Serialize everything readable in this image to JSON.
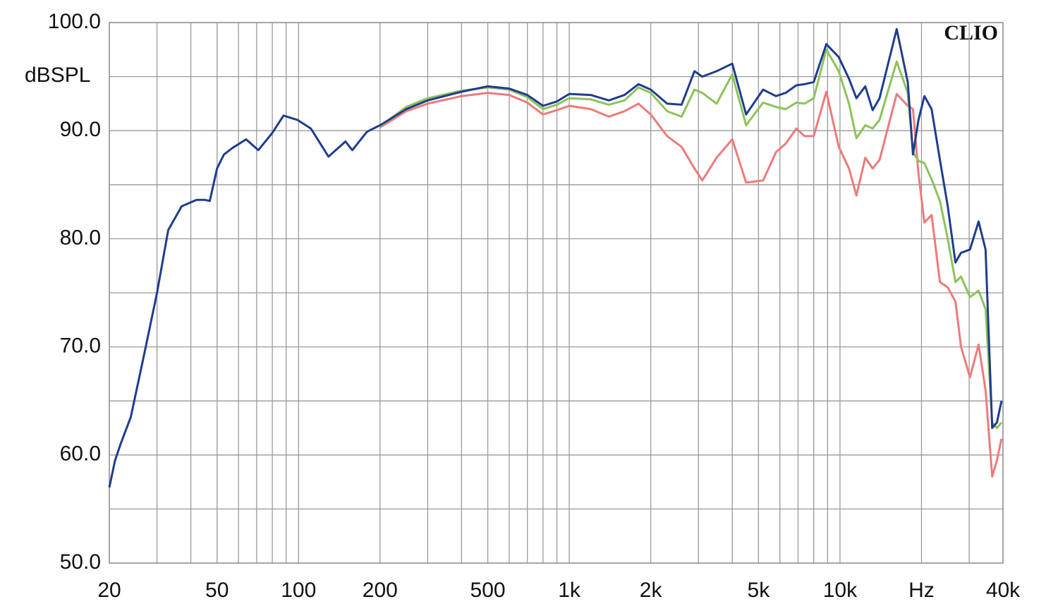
{
  "chart_data": {
    "type": "line",
    "y_label": "dBSPL",
    "annotation": "CLIO",
    "log_x": true,
    "grid": true,
    "xlim": [
      20,
      40000
    ],
    "ylim": [
      50,
      100
    ],
    "xticks": [
      20,
      50,
      100,
      200,
      500,
      {
        "value": 1000,
        "label": "1k"
      },
      {
        "value": 2000,
        "label": "2k"
      },
      {
        "value": 5000,
        "label": "5k"
      },
      {
        "value": 10000,
        "label": "10k"
      },
      {
        "value": 20000,
        "label": "Hz"
      },
      {
        "value": 40000,
        "label": "40k"
      }
    ],
    "yticks": [
      {
        "value": 50,
        "label": "50.0"
      },
      {
        "value": 60,
        "label": "60.0"
      },
      {
        "value": 70,
        "label": "70.0"
      },
      {
        "value": 80,
        "label": "80.0"
      },
      {
        "value": 90,
        "label": "90.0"
      },
      {
        "value": 100,
        "label": "100.0"
      }
    ],
    "xminor": [
      30,
      40,
      60,
      70,
      80,
      90,
      300,
      400,
      600,
      700,
      800,
      900,
      3000,
      4000,
      6000,
      7000,
      8000,
      9000,
      30000
    ],
    "yminor": [
      55,
      65,
      75,
      85,
      95
    ],
    "x": [
      20,
      21,
      22,
      24,
      27,
      30,
      33,
      37,
      42,
      45,
      47,
      50,
      53,
      57,
      64,
      71,
      80,
      88,
      99,
      111,
      129,
      149,
      158,
      179,
      200,
      250,
      300,
      400,
      500,
      600,
      700,
      800,
      900,
      1000,
      1200,
      1400,
      1600,
      1800,
      2000,
      2300,
      2600,
      2900,
      3100,
      3500,
      4000,
      4500,
      5200,
      5800,
      6300,
      6900,
      7400,
      8000,
      8900,
      9900,
      10800,
      11500,
      12400,
      13200,
      14000,
      16200,
      17800,
      18600,
      19500,
      20500,
      21800,
      23400,
      25000,
      26700,
      28000,
      30200,
      32500,
      34500,
      36500,
      38000,
      39500
    ],
    "series": [
      {
        "color": "#ec7b7b",
        "values": [
          null,
          null,
          null,
          null,
          null,
          null,
          null,
          null,
          null,
          null,
          null,
          null,
          null,
          null,
          null,
          null,
          null,
          null,
          null,
          null,
          null,
          null,
          null,
          null,
          90.3,
          91.8,
          92.5,
          93.2,
          93.5,
          93.3,
          92.6,
          91.5,
          91.9,
          92.3,
          92,
          91.3,
          91.8,
          92.5,
          91.5,
          89.5,
          88.5,
          86.5,
          85.4,
          87.5,
          89.2,
          85.2,
          85.4,
          88,
          88.8,
          90.2,
          89.5,
          89.5,
          93.6,
          88.5,
          86.5,
          84,
          87.5,
          86.5,
          87.3,
          93.4,
          92.3,
          92,
          86,
          81.5,
          82.2,
          76,
          75.5,
          74.2,
          70,
          67.2,
          70.2,
          66,
          58,
          59.5,
          61.5
        ]
      },
      {
        "color": "#8cc35a",
        "values": [
          null,
          null,
          null,
          null,
          null,
          null,
          null,
          null,
          null,
          null,
          null,
          null,
          null,
          null,
          null,
          null,
          null,
          null,
          null,
          null,
          null,
          null,
          null,
          null,
          90.4,
          92.2,
          93,
          93.7,
          94,
          93.8,
          93.1,
          92,
          92.4,
          93,
          92.9,
          92.4,
          92.8,
          94,
          93.5,
          91.8,
          91.3,
          93.8,
          93.5,
          92.5,
          95.2,
          90.5,
          92.6,
          92.2,
          92,
          92.6,
          92.5,
          93,
          97.5,
          95.5,
          92.5,
          89.3,
          90.5,
          90.2,
          91,
          96.4,
          93.5,
          88,
          87.2,
          87,
          85.5,
          83.5,
          80,
          76,
          76.5,
          74.6,
          75.2,
          73.5,
          63,
          62.5,
          63
        ]
      },
      {
        "color": "#1f3d8e",
        "values": [
          57,
          59.5,
          61,
          63.5,
          69.5,
          75,
          80.8,
          83,
          83.6,
          83.6,
          83.5,
          86.5,
          87.8,
          88.4,
          89.2,
          88.2,
          89.8,
          91.4,
          91,
          90.2,
          87.6,
          89,
          88.2,
          89.9,
          90.5,
          92,
          92.8,
          93.6,
          94.1,
          93.9,
          93.3,
          92.3,
          92.7,
          93.4,
          93.3,
          92.8,
          93.3,
          94.3,
          93.8,
          92.5,
          92.4,
          95.5,
          95,
          95.5,
          96.2,
          91.5,
          93.8,
          93.2,
          93.5,
          94.2,
          94.3,
          94.5,
          98,
          96.8,
          94.8,
          93,
          94.1,
          91.9,
          93,
          99.4,
          94.5,
          87.8,
          91,
          93.2,
          92,
          87.3,
          83,
          77.8,
          78.7,
          79,
          81.6,
          79,
          62.5,
          63,
          65
        ]
      }
    ]
  }
}
